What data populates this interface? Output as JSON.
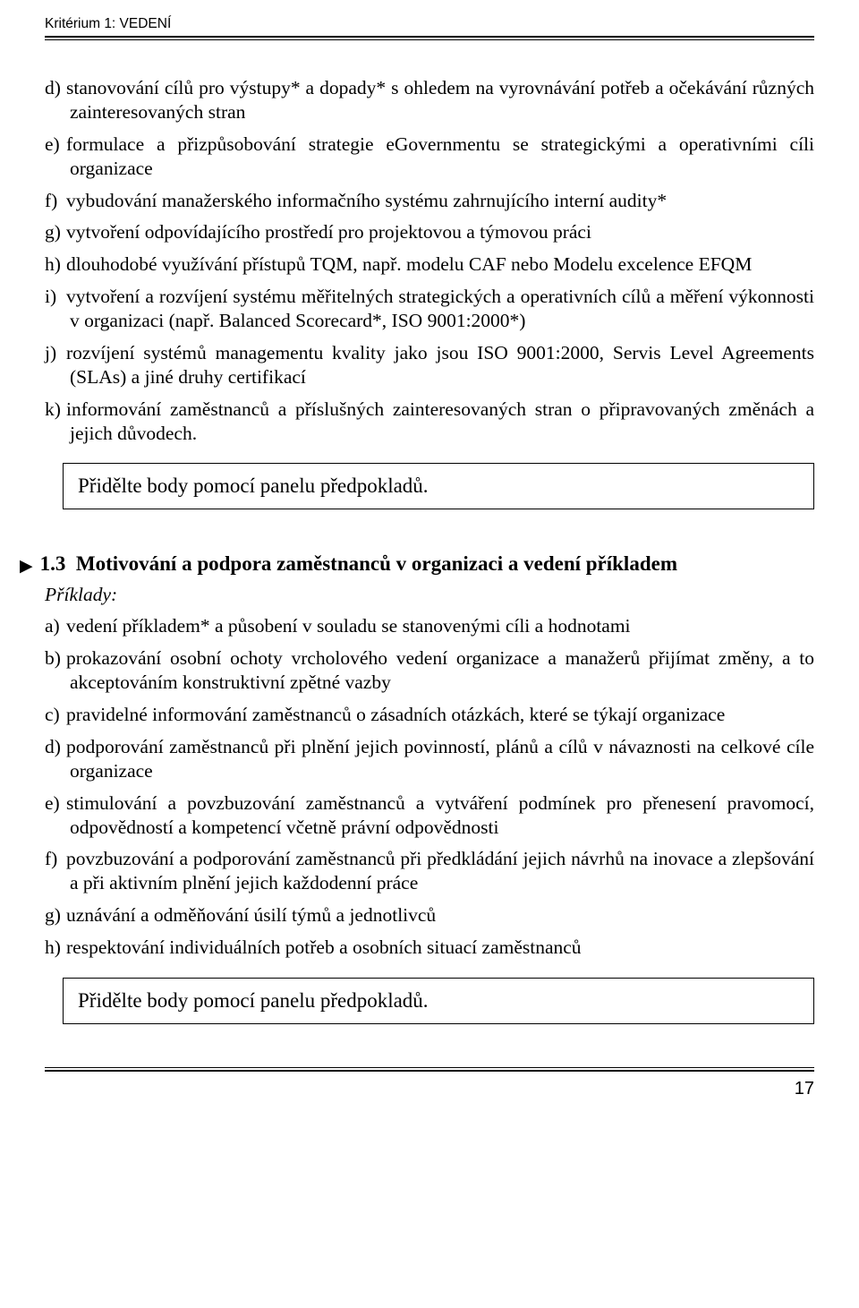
{
  "header": {
    "label": "Kritérium 1: VEDENÍ"
  },
  "list1": {
    "items": [
      {
        "marker": "d)",
        "text": "stanovování cílů pro výstupy* a dopady* s ohledem na vyrovnávání potřeb a očekávání různých zainteresovaných stran"
      },
      {
        "marker": "e)",
        "text": "formulace a přizpůsobování strategie eGovernmentu se strategickými a operativními cíli organizace"
      },
      {
        "marker": "f)",
        "text": "vybudování manažerského informačního systému zahrnujícího interní audity*"
      },
      {
        "marker": "g)",
        "text": "vytvoření odpovídajícího prostředí pro projektovou a týmovou práci"
      },
      {
        "marker": "h)",
        "text": "dlouhodobé využívání přístupů TQM, např. modelu CAF nebo Modelu excelence EFQM"
      },
      {
        "marker": "i)",
        "text": "vytvoření a rozvíjení systému měřitelných strategických a operativních cílů a měření výkonnosti v organizaci (např. Balanced Scorecard*, ISO 9001:2000*)"
      },
      {
        "marker": "j)",
        "text": "rozvíjení systémů managementu kvality jako jsou ISO 9001:2000, Servis Level Agreements (SLAs) a jiné druhy certifikací"
      },
      {
        "marker": "k)",
        "text": "informování zaměstnanců a příslušných zainteresovaných stran o připravovaných změnách a jejich důvodech."
      }
    ]
  },
  "action_box": {
    "text": "Přidělte body pomocí panelu předpokladů."
  },
  "section": {
    "number": "1.3",
    "title": "Motivování a podpora zaměstnanců v organizaci a vedení příkladem",
    "examples_label": "Příklady:"
  },
  "list2": {
    "items": [
      {
        "marker": "a)",
        "text": "vedení příkladem* a působení v souladu se stanovenými cíli a hodnotami"
      },
      {
        "marker": "b)",
        "text": "prokazování osobní ochoty vrcholového vedení organizace a manažerů přijímat změny, a to akceptováním konstruktivní zpětné vazby"
      },
      {
        "marker": "c)",
        "text": "pravidelné informování zaměstnanců o zásadních otázkách, které se týkají organizace"
      },
      {
        "marker": "d)",
        "text": "podporování zaměstnanců při plnění jejich povinností, plánů a cílů v návaznosti na celkové cíle organizace"
      },
      {
        "marker": "e)",
        "text": "stimulování a povzbuzování zaměstnanců a vytváření podmínek pro přenesení pravomocí, odpovědností a kompetencí včetně právní odpovědnosti"
      },
      {
        "marker": "f)",
        "text": "povzbuzování a podporování zaměstnanců při předkládání jejich návrhů na inovace a zlepšování a při aktivním plnění jejich každodenní práce"
      },
      {
        "marker": "g)",
        "text": "uznávání a odměňování úsilí týmů a jednotlivců"
      },
      {
        "marker": "h)",
        "text": "respektování individuálních potřeb a osobních situací zaměstnanců"
      }
    ]
  },
  "page_number": "17"
}
